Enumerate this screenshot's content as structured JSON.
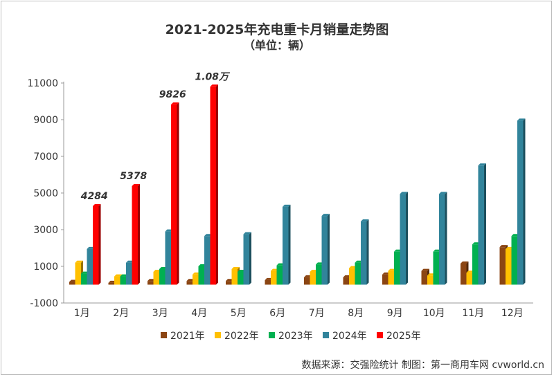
{
  "chart_data": {
    "type": "bar",
    "title": "2021-2025年充电重卡月销量走势图",
    "subtitle": "（单位：辆）",
    "categories": [
      "1月",
      "2月",
      "3月",
      "4月",
      "5月",
      "6月",
      "7月",
      "8月",
      "9月",
      "10月",
      "11月",
      "12月"
    ],
    "series": [
      {
        "name": "2021年",
        "color": "#8B4513",
        "values": [
          150,
          100,
          200,
          200,
          200,
          250,
          400,
          400,
          550,
          750,
          1150,
          2050
        ]
      },
      {
        "name": "2022年",
        "color": "#FFC000",
        "values": [
          1200,
          450,
          700,
          550,
          850,
          750,
          700,
          900,
          750,
          500,
          650,
          1950
        ]
      },
      {
        "name": "2023年",
        "color": "#00B050",
        "values": [
          600,
          450,
          850,
          1000,
          700,
          1050,
          1100,
          1200,
          1800,
          1800,
          2200,
          2650
        ]
      },
      {
        "name": "2024年",
        "color": "#31849B",
        "values": [
          1950,
          1200,
          2900,
          2650,
          2750,
          4250,
          3750,
          3450,
          4950,
          4950,
          6500,
          8950
        ]
      },
      {
        "name": "2025年",
        "color": "#FF0000",
        "values": [
          4284,
          5378,
          9826,
          10800,
          null,
          null,
          null,
          null,
          null,
          null,
          null,
          null
        ]
      }
    ],
    "data_labels": [
      "4284",
      "5378",
      "9826",
      "1.08万"
    ],
    "yticks": [
      "11000",
      "9000",
      "7000",
      "5000",
      "3000",
      "1000",
      "-1000"
    ],
    "ylim": [
      -1000,
      11000
    ],
    "legend": "bottom"
  },
  "source_text": "数据来源：交强险统计  制图：第一商用车网 cvworld.cn"
}
